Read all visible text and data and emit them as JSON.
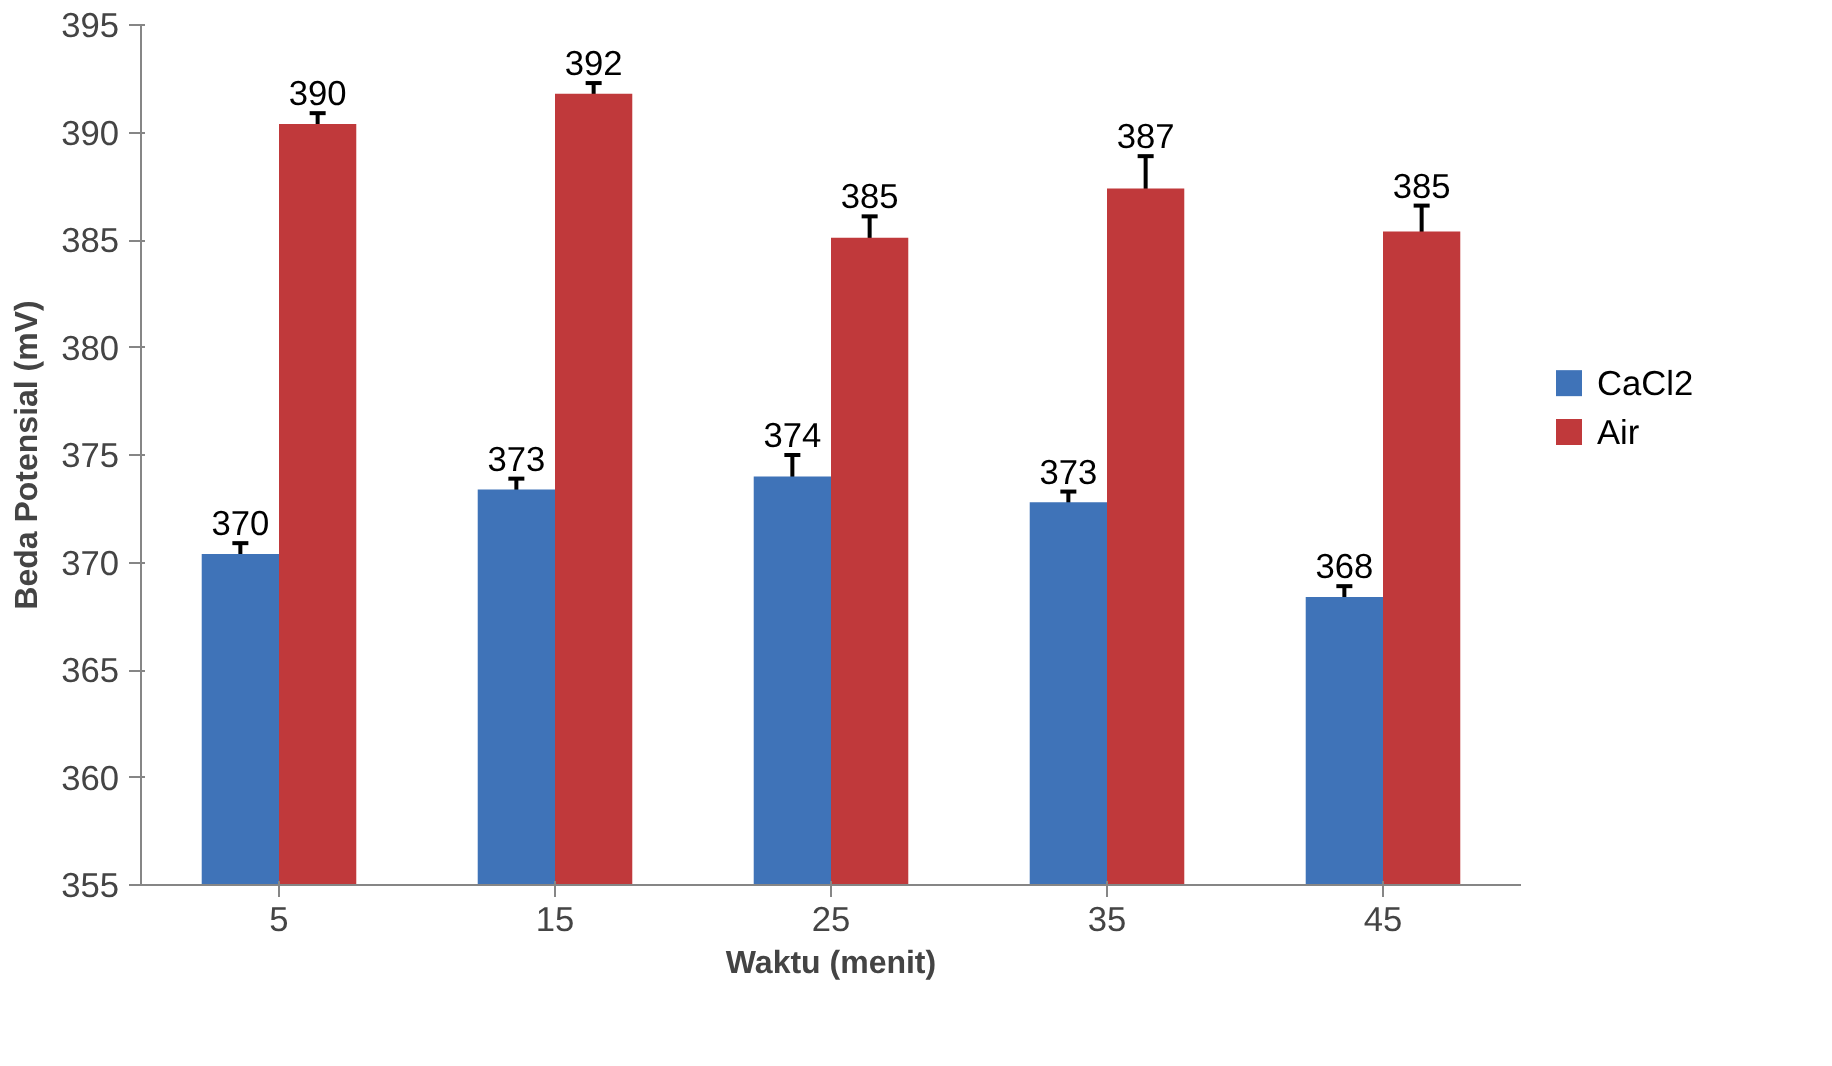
{
  "chart_data": {
    "type": "bar",
    "xlabel": "Waktu (menit)",
    "ylabel": "Beda Potensial (mV)",
    "categories": [
      "5",
      "15",
      "25",
      "35",
      "45"
    ],
    "series": [
      {
        "name": "CaCl2",
        "color": "#3f73b8",
        "values": [
          370.4,
          373.4,
          374.0,
          372.8,
          368.4
        ],
        "errors": [
          0.5,
          0.5,
          1.0,
          0.5,
          0.5
        ],
        "value_labels": [
          "370",
          "373",
          "374",
          "373",
          "368"
        ]
      },
      {
        "name": "Air",
        "color": "#c0393b",
        "values": [
          390.4,
          391.8,
          385.1,
          387.4,
          385.4
        ],
        "errors": [
          0.5,
          0.5,
          1.0,
          1.5,
          1.2
        ],
        "value_labels": [
          "390",
          "392",
          "385",
          "387",
          "385"
        ]
      }
    ],
    "ylim": [
      355,
      395
    ],
    "yticks": [
      355,
      360,
      365,
      370,
      375,
      380,
      385,
      390,
      395
    ],
    "grid": false,
    "legend": "right"
  }
}
